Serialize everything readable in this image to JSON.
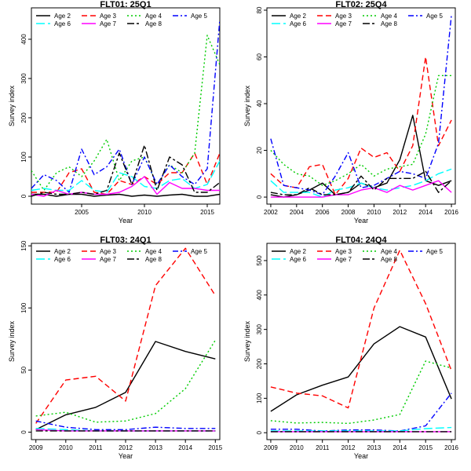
{
  "figure": {
    "background": "#ffffff"
  },
  "chart_data": [
    {
      "type": "line",
      "title": "FLT01: 25Q1",
      "xlabel": "Year",
      "ylabel": "Survey index",
      "xlim": [
        2001,
        2016
      ],
      "ylim": [
        -20,
        480
      ],
      "xticks": [
        2005,
        2010,
        2015
      ],
      "yticks": [
        0,
        100,
        200,
        300,
        400
      ],
      "legend_position": "top",
      "x": [
        2001,
        2002,
        2003,
        2004,
        2005,
        2006,
        2007,
        2008,
        2009,
        2010,
        2011,
        2012,
        2013,
        2014,
        2015,
        2016
      ],
      "series": [
        {
          "name": "Age 2",
          "color": "#000000",
          "dash": "solid",
          "values": [
            5,
            5,
            0,
            5,
            5,
            0,
            3,
            5,
            0,
            3,
            0,
            3,
            5,
            0,
            0,
            5
          ]
        },
        {
          "name": "Age 3",
          "color": "#ff0000",
          "dash": "dash",
          "values": [
            10,
            10,
            10,
            60,
            70,
            10,
            5,
            40,
            30,
            50,
            30,
            60,
            60,
            110,
            30,
            110
          ]
        },
        {
          "name": "Age 4",
          "color": "#00cc00",
          "dash": "dot",
          "values": [
            65,
            15,
            60,
            75,
            50,
            90,
            145,
            40,
            90,
            100,
            30,
            80,
            60,
            110,
            410,
            335
          ]
        },
        {
          "name": "Age 5",
          "color": "#0000ff",
          "dash": "dashdot",
          "values": [
            20,
            55,
            40,
            10,
            120,
            55,
            75,
            120,
            30,
            100,
            30,
            80,
            50,
            30,
            70,
            450
          ]
        },
        {
          "name": "Age 6",
          "color": "#00ffff",
          "dash": "longdash",
          "values": [
            15,
            20,
            15,
            15,
            40,
            15,
            10,
            60,
            50,
            25,
            20,
            40,
            45,
            20,
            30,
            90
          ]
        },
        {
          "name": "Age 7",
          "color": "#ff00ff",
          "dash": "solid",
          "values": [
            5,
            0,
            15,
            5,
            10,
            5,
            5,
            10,
            25,
            50,
            5,
            35,
            20,
            20,
            15,
            15
          ]
        },
        {
          "name": "Age 8",
          "color": "#000000",
          "dash": "dashlong",
          "values": [
            0,
            10,
            5,
            5,
            10,
            5,
            15,
            110,
            30,
            130,
            15,
            100,
            80,
            10,
            10,
            35
          ]
        }
      ]
    },
    {
      "type": "line",
      "title": "FLT02: 25Q4",
      "xlabel": "Year",
      "ylabel": "Survey index",
      "xlim": [
        2001.7,
        2016.3
      ],
      "ylim": [
        -3,
        81
      ],
      "xticks": [
        2002,
        2004,
        2006,
        2008,
        2010,
        2012,
        2014,
        2016
      ],
      "yticks": [
        0,
        20,
        40,
        60,
        80
      ],
      "legend_position": "top",
      "x": [
        2002,
        2003,
        2004,
        2005,
        2006,
        2007,
        2008,
        2009,
        2010,
        2011,
        2012,
        2013,
        2014,
        2015,
        2016
      ],
      "series": [
        {
          "name": "Age 2",
          "color": "#000000",
          "dash": "solid",
          "values": [
            1,
            0,
            1,
            3,
            6,
            1,
            2,
            6,
            4,
            6,
            16,
            35,
            7,
            5,
            7
          ]
        },
        {
          "name": "Age 3",
          "color": "#ff0000",
          "dash": "dash",
          "values": [
            10,
            5,
            4,
            13,
            14,
            1,
            8,
            21,
            17,
            19,
            11,
            22,
            60,
            22,
            33
          ]
        },
        {
          "name": "Age 4",
          "color": "#00cc00",
          "dash": "dot",
          "values": [
            20,
            14,
            10,
            9,
            5,
            7,
            10,
            14,
            9,
            12,
            13,
            14,
            27,
            52,
            52
          ]
        },
        {
          "name": "Age 5",
          "color": "#0000ff",
          "dash": "dashdot",
          "values": [
            25,
            5,
            4,
            3,
            1,
            9,
            19,
            4,
            5,
            8,
            11,
            10,
            8,
            23,
            78
          ]
        },
        {
          "name": "Age 6",
          "color": "#00ffff",
          "dash": "longdash",
          "values": [
            7,
            2,
            2,
            2,
            0,
            3,
            4,
            6,
            4,
            3,
            4,
            5,
            7,
            10,
            12
          ]
        },
        {
          "name": "Age 7",
          "color": "#ff00ff",
          "dash": "solid",
          "values": [
            0,
            0,
            0,
            0,
            0,
            1,
            1,
            3,
            4,
            2,
            5,
            3,
            5,
            7,
            2
          ]
        },
        {
          "name": "Age 8",
          "color": "#000000",
          "dash": "dashlong",
          "values": [
            2,
            1,
            1,
            4,
            1,
            1,
            2,
            9,
            3,
            8,
            8,
            8,
            11,
            2,
            7
          ]
        }
      ]
    },
    {
      "type": "line",
      "title": "FLT03: 24Q1",
      "xlabel": "Year",
      "ylabel": "Survey index",
      "xlim": [
        2008.85,
        2015.15
      ],
      "ylim": [
        -6,
        152
      ],
      "xticks": [
        2009,
        2010,
        2011,
        2012,
        2013,
        2014,
        2015
      ],
      "yticks": [
        0,
        50,
        100,
        150
      ],
      "legend_position": "top",
      "x": [
        2009,
        2010,
        2011,
        2012,
        2013,
        2014,
        2015
      ],
      "series": [
        {
          "name": "Age 2",
          "color": "#000000",
          "dash": "solid",
          "values": [
            2,
            14,
            20,
            32,
            73,
            65,
            59
          ]
        },
        {
          "name": "Age 3",
          "color": "#ff0000",
          "dash": "dash",
          "values": [
            7,
            42,
            45,
            25,
            118,
            148,
            110
          ]
        },
        {
          "name": "Age 4",
          "color": "#00cc00",
          "dash": "dot",
          "values": [
            13,
            16,
            8,
            9,
            15,
            35,
            74
          ]
        },
        {
          "name": "Age 5",
          "color": "#0000ff",
          "dash": "dashdot",
          "values": [
            9,
            4,
            2,
            2,
            4,
            3,
            3
          ]
        },
        {
          "name": "Age 6",
          "color": "#00ffff",
          "dash": "longdash",
          "values": [
            3,
            2,
            1,
            1,
            1,
            1,
            1
          ]
        },
        {
          "name": "Age 7",
          "color": "#ff00ff",
          "dash": "solid",
          "values": [
            2,
            1,
            1,
            1,
            1,
            1,
            1
          ]
        },
        {
          "name": "Age 8",
          "color": "#000000",
          "dash": "dashlong",
          "values": [
            1,
            1,
            1,
            1,
            1,
            1,
            1
          ]
        }
      ]
    },
    {
      "type": "line",
      "title": "FLT04: 24Q4",
      "xlabel": "Year",
      "ylabel": "Survey index",
      "xlim": [
        2008.85,
        2016.15
      ],
      "ylim": [
        -20,
        550
      ],
      "xticks": [
        2009,
        2010,
        2011,
        2012,
        2013,
        2014,
        2015,
        2016
      ],
      "yticks": [
        0,
        100,
        200,
        300,
        400,
        500
      ],
      "legend_position": "top",
      "x": [
        2009,
        2010,
        2011,
        2012,
        2013,
        2014,
        2015,
        2016
      ],
      "series": [
        {
          "name": "Age 2",
          "color": "#000000",
          "dash": "solid",
          "values": [
            62,
            110,
            138,
            162,
            258,
            308,
            278,
            98
          ]
        },
        {
          "name": "Age 3",
          "color": "#ff0000",
          "dash": "dash",
          "values": [
            133,
            115,
            107,
            72,
            362,
            530,
            375,
            180
          ]
        },
        {
          "name": "Age 4",
          "color": "#00cc00",
          "dash": "dot",
          "values": [
            35,
            28,
            30,
            27,
            37,
            53,
            208,
            188
          ]
        },
        {
          "name": "Age 5",
          "color": "#0000ff",
          "dash": "dashdot",
          "values": [
            10,
            10,
            5,
            8,
            8,
            5,
            20,
            115
          ]
        },
        {
          "name": "Age 6",
          "color": "#00ffff",
          "dash": "longdash",
          "values": [
            5,
            5,
            5,
            5,
            5,
            5,
            12,
            15
          ]
        },
        {
          "name": "Age 7",
          "color": "#ff00ff",
          "dash": "solid",
          "values": [
            3,
            3,
            3,
            3,
            3,
            3,
            3,
            3
          ]
        },
        {
          "name": "Age 8",
          "color": "#000000",
          "dash": "dashlong",
          "values": [
            3,
            3,
            3,
            3,
            3,
            3,
            3,
            3
          ]
        }
      ]
    }
  ]
}
